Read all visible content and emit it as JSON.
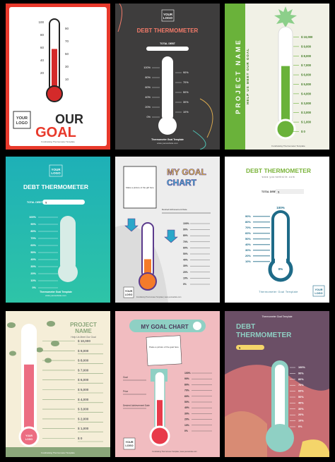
{
  "logo": {
    "line1": "YOUR",
    "line2": "LOGO"
  },
  "card1": {
    "scale_left": [
      "100",
      "80",
      "60",
      "40",
      "20"
    ],
    "scale_right": [
      "90",
      "70",
      "50",
      "30",
      "10"
    ],
    "title1": "OUR",
    "title2": "GOAL",
    "footer": "Fundraising Thermometer Template",
    "fill": 0.6,
    "colors": {
      "frame": "#e8392b",
      "mercury": "#d42a2a"
    }
  },
  "card2": {
    "title": "DEBT THERMOMETER",
    "total_label": "TOTAL DEBT",
    "scale_left": [
      "100%",
      "80%",
      "60%",
      "40%",
      "20%",
      "0%"
    ],
    "scale_right": [
      "90%",
      "70%",
      "50%",
      "30%",
      "10%"
    ],
    "footer1": "Thermometer Goal Template",
    "footer2": "www.yourwebsite.com",
    "fill": 0,
    "colors": {
      "bg": "#3e3d3d",
      "accent": "#f47b6a"
    }
  },
  "card3": {
    "title": "PROJECT NAME",
    "subtitle": "HELP US MEET OUR GOAL",
    "amounts": [
      "$ 10,000",
      "$ 9,000",
      "$ 8,000",
      "$ 7,000",
      "$ 6,000",
      "$ 5,000",
      "$ 4,000",
      "$ 3,000",
      "$ 2,000",
      "$ 1,000",
      "$ 0"
    ],
    "footer": "Fundraising Thermometer Template",
    "fill": 0.62,
    "colors": {
      "band": "#6ab23a",
      "bg": "#f1f1e6"
    }
  },
  "card4": {
    "title": "DEBT THERMOMETER",
    "total_label": "TOTAL DEBT",
    "total_value": "$",
    "scale": [
      "100%",
      "90%",
      "80%",
      "70%",
      "60%",
      "50%",
      "40%",
      "30%",
      "20%",
      "10%",
      "0%"
    ],
    "footer1": "Thermometer Goal Template",
    "footer2": "www.yourwebsite.com",
    "fill": 0,
    "colors": {
      "top": "#1eb0b7",
      "bottom": "#2ec4a7"
    }
  },
  "card5": {
    "title1": "MY GOAL",
    "title2": "CHART",
    "photo_caption": "Make a picture of the gift here",
    "achieve_label": "Desired Achievement Date",
    "scale": [
      "100%",
      "90%",
      "80%",
      "70%",
      "60%",
      "50%",
      "40%",
      "30%",
      "20%",
      "10%",
      "0%"
    ],
    "footer": "Fundraising Thermometer Template | www.yourwebsite.com",
    "fill": 0.35,
    "colors": {
      "mercury": "#f47b2a",
      "outline": "#5b3a8c",
      "arrow": "#2aa7c9"
    }
  },
  "card6": {
    "title": "DEBT THERMOMETER",
    "website": "www.yourwebsite.com",
    "total_label": "TOTAL DEBT",
    "total_value": "$",
    "top_label": "100%",
    "scale": [
      "90%",
      "80%",
      "70%",
      "60%",
      "50%",
      "40%",
      "30%",
      "20%",
      "10%"
    ],
    "zero": "0%",
    "footer": "Thermometer Goal Template",
    "fill": 0,
    "colors": {
      "accent": "#1e6b88",
      "title": "#7ab33a"
    }
  },
  "card7": {
    "title1": "PROJECT",
    "title2": "NAME",
    "subtitle": "Help Us Meet Our Goal",
    "amounts": [
      "$ 10,000",
      "$ 9,000",
      "$ 8,000",
      "$ 7,000",
      "$ 6,000",
      "$ 5,000",
      "$ 4,000",
      "$ 3,000",
      "$ 2,000",
      "$ 1,000",
      "$ 0"
    ],
    "footer": "Fundraising Thermometer Template",
    "fill": 0.65,
    "colors": {
      "mercury": "#ec6d82",
      "bg": "#f5eed8",
      "band": "#8aa67a"
    }
  },
  "card8": {
    "title": "MY GOAL CHART",
    "photo_caption": "Paste a picture of the goal here",
    "labels": [
      "Goal",
      "Price",
      "Desired Achievement Date"
    ],
    "scale": [
      "100%",
      "90%",
      "80%",
      "70%",
      "60%",
      "50%",
      "40%",
      "30%",
      "20%",
      "10%",
      "0%"
    ],
    "footer": "Fundraising Thermometer Template | www.yourwebsite.com",
    "fill": 0.55,
    "colors": {
      "bg": "#f1bcc0",
      "mercury": "#e83a4a"
    }
  },
  "card9": {
    "top_text": "Thermometer Goal Template",
    "title1": "DEBT",
    "title2": "THERMOMETER",
    "total_value": "$",
    "scale": [
      "100%",
      "90%",
      "80%",
      "70%",
      "60%",
      "50%",
      "40%",
      "30%",
      "20%",
      "10%",
      "0%"
    ],
    "fill": 0,
    "colors": {
      "bg": "#6b4f66",
      "accent": "#ee8b6a",
      "stem": "#8fd0c4"
    }
  }
}
